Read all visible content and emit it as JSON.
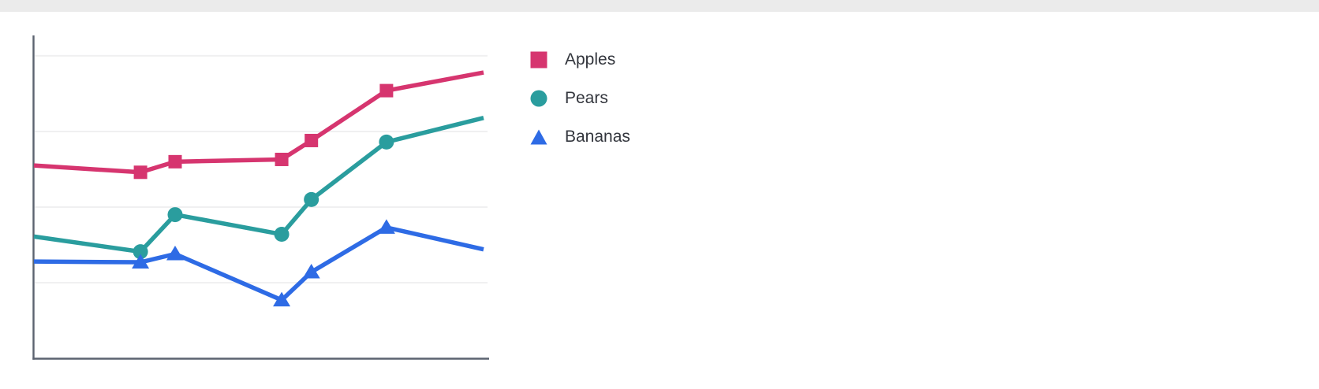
{
  "page": {
    "background": "#ffffff",
    "top_strip_color": "#ebebeb"
  },
  "chart_data": {
    "type": "line",
    "title": "",
    "xlabel": "",
    "ylabel": "",
    "x": [
      0,
      23.7,
      31.4,
      55.1,
      61.7,
      78.4,
      100
    ],
    "series": [
      {
        "name": "Apples",
        "color": "#d6356f",
        "marker": "square",
        "values": [
          25.5,
          24.6,
          26.0,
          26.3,
          28.8,
          35.4,
          37.8
        ]
      },
      {
        "name": "Pears",
        "color": "#2a9d9e",
        "marker": "circle",
        "values": [
          16.1,
          14.1,
          19.0,
          16.4,
          21.0,
          28.6,
          31.8
        ]
      },
      {
        "name": "Bananas",
        "color": "#2e6be5",
        "marker": "triangle",
        "values": [
          12.8,
          12.7,
          13.8,
          7.7,
          11.4,
          17.3,
          14.4
        ]
      }
    ],
    "xlim": [
      0,
      100
    ],
    "ylim": [
      0,
      42.7
    ],
    "grid": {
      "horizontal": true,
      "values": [
        10,
        20,
        30,
        40
      ],
      "color": "#f0f0f1"
    },
    "axis_color": "#5c6370",
    "tick_labels_visible": false,
    "markers_on_endpoints": false,
    "legend": {
      "position": "right",
      "text_color": "#32353c"
    }
  }
}
